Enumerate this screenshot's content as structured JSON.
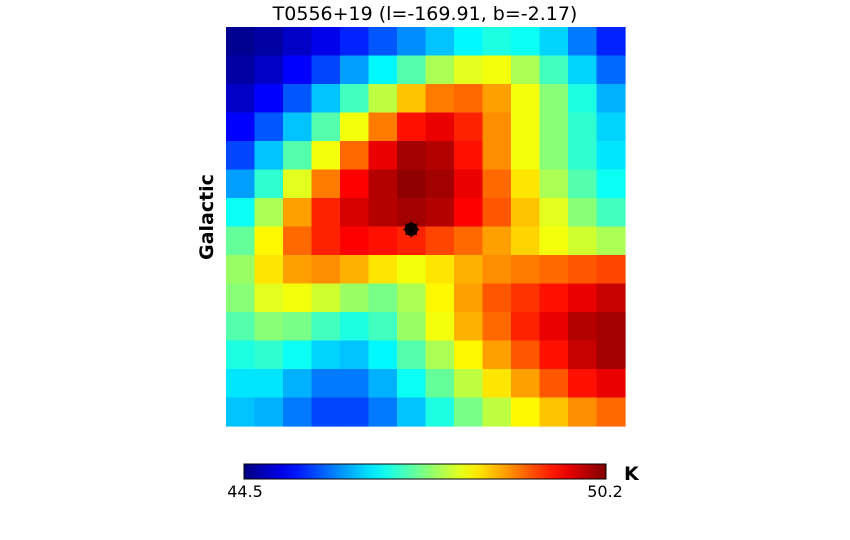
{
  "chart_data": {
    "type": "heatmap",
    "title": "T0556+19 (l=-169.91, b=-2.17)",
    "ylabel": "Galactic",
    "colorbar": {
      "label": "K",
      "min_label": "44.5",
      "max_label": "50.2",
      "vmin": 44.5,
      "vmax": 50.2,
      "colormap": "jet"
    },
    "grid": false,
    "rows": 14,
    "cols": 14,
    "values": [
      [
        44.6,
        44.7,
        44.9,
        45.1,
        45.4,
        45.7,
        46.0,
        46.3,
        46.6,
        46.8,
        46.7,
        46.4,
        45.9,
        45.4
      ],
      [
        44.7,
        44.9,
        45.2,
        45.6,
        46.1,
        46.6,
        47.1,
        47.6,
        47.9,
        48.0,
        47.6,
        47.0,
        46.4,
        45.8
      ],
      [
        44.9,
        45.2,
        45.7,
        46.3,
        47.0,
        47.7,
        48.4,
        48.8,
        48.9,
        48.6,
        48.0,
        47.4,
        46.8,
        46.2
      ],
      [
        45.2,
        45.7,
        46.3,
        47.1,
        48.0,
        48.8,
        49.4,
        49.6,
        49.3,
        48.7,
        48.0,
        47.4,
        46.9,
        46.4
      ],
      [
        45.6,
        46.3,
        47.1,
        48.0,
        48.9,
        49.6,
        50.0,
        49.9,
        49.4,
        48.7,
        48.0,
        47.4,
        46.9,
        46.5
      ],
      [
        46.1,
        46.9,
        47.9,
        48.8,
        49.5,
        49.9,
        50.1,
        50.0,
        49.6,
        48.9,
        48.2,
        47.6,
        47.1,
        46.7
      ],
      [
        46.7,
        47.6,
        48.6,
        49.3,
        49.7,
        49.9,
        50.0,
        49.9,
        49.5,
        49.0,
        48.4,
        47.9,
        47.4,
        47.0
      ],
      [
        47.2,
        48.1,
        48.9,
        49.3,
        49.5,
        49.4,
        49.3,
        49.1,
        48.9,
        48.6,
        48.3,
        48.0,
        47.8,
        47.6
      ],
      [
        47.5,
        48.2,
        48.6,
        48.7,
        48.5,
        48.2,
        48.0,
        48.2,
        48.5,
        48.7,
        48.8,
        48.9,
        49.0,
        49.1
      ],
      [
        47.4,
        47.9,
        48.0,
        47.8,
        47.5,
        47.3,
        47.6,
        48.1,
        48.6,
        49.0,
        49.2,
        49.4,
        49.6,
        49.8
      ],
      [
        47.1,
        47.4,
        47.3,
        47.0,
        46.8,
        47.0,
        47.5,
        48.0,
        48.5,
        48.9,
        49.3,
        49.6,
        49.9,
        50.0
      ],
      [
        46.8,
        46.9,
        46.7,
        46.4,
        46.3,
        46.6,
        47.1,
        47.6,
        48.1,
        48.6,
        49.0,
        49.4,
        49.8,
        50.0
      ],
      [
        46.5,
        46.5,
        46.2,
        45.9,
        45.9,
        46.2,
        46.7,
        47.2,
        47.7,
        48.2,
        48.6,
        49.0,
        49.4,
        49.6
      ],
      [
        46.3,
        46.2,
        45.9,
        45.6,
        45.6,
        45.9,
        46.3,
        46.8,
        47.3,
        47.7,
        48.1,
        48.4,
        48.7,
        48.9
      ]
    ],
    "marker": {
      "row": 6.6,
      "col": 6.0,
      "symbol": "target"
    }
  }
}
